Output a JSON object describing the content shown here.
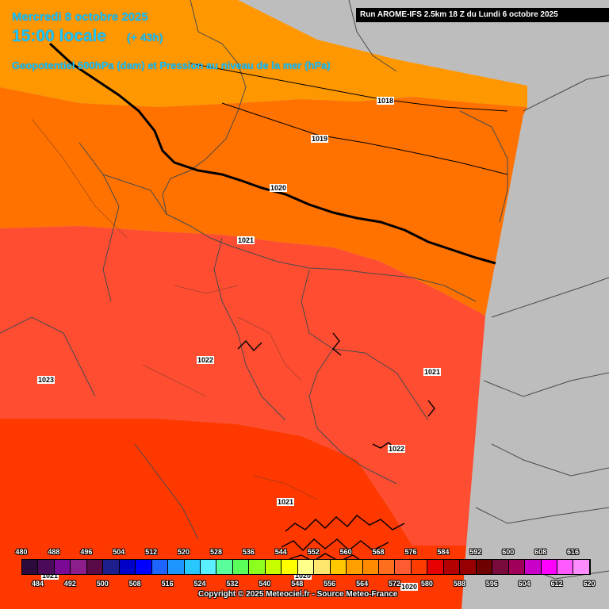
{
  "header": {
    "date": "Mercredi 8 octobre 2025",
    "time": "15:00 locale",
    "offset": "(+ 43h)",
    "field": "Geopotentiel 500hPa (dam) et Pression au niveau de la mer (hPa)",
    "run": "Run AROME-IFS 2.5km 18 Z du Lundi 6 octobre 2025"
  },
  "isobars": [
    {
      "value": "1018"
    },
    {
      "value": "1019"
    },
    {
      "value": "1020"
    },
    {
      "value": "1021"
    },
    {
      "value": "1022"
    },
    {
      "value": "1023"
    },
    {
      "value": "1021"
    },
    {
      "value": "1022"
    },
    {
      "value": "1021"
    },
    {
      "value": "1020"
    },
    {
      "value": "1020"
    },
    {
      "value": "1021"
    }
  ],
  "scale": {
    "top_labels": [
      "480",
      "488",
      "496",
      "504",
      "512",
      "520",
      "528",
      "536",
      "544",
      "552",
      "560",
      "568",
      "576",
      "584",
      "592",
      "600",
      "608",
      "616"
    ],
    "bottom_labels": [
      "484",
      "492",
      "500",
      "508",
      "516",
      "524",
      "532",
      "540",
      "548",
      "556",
      "564",
      "572",
      "580",
      "588",
      "596",
      "604",
      "612",
      "620"
    ],
    "colors": [
      "#2d0a3c",
      "#4b0a5a",
      "#7a0a96",
      "#8c1e8c",
      "#5a0a46",
      "#1e1e8c",
      "#0000c8",
      "#0000ff",
      "#1e64ff",
      "#1e96ff",
      "#28c8ff",
      "#5af0ff",
      "#5aff9b",
      "#5aff5a",
      "#8cff1e",
      "#c8ff00",
      "#ffff00",
      "#ffff8c",
      "#ffe66e",
      "#ffc800",
      "#ffa000",
      "#ff8c00",
      "#ff6e1e",
      "#ff5a32",
      "#ff3c00",
      "#e60000",
      "#b40000",
      "#960000",
      "#6e0000",
      "#780a3c",
      "#a0005a",
      "#c800c8",
      "#ff00ff",
      "#ff5aff",
      "#ff8cff"
    ]
  },
  "copyright": "Copyright © 2025 Meteociel.fr - Source Meteo-France",
  "colors": {
    "background": "#bdbdbd",
    "band_568": "#ff9800",
    "band_572": "#ff7200",
    "band_576": "#ff4d32",
    "band_580": "#ff3800",
    "title": "#1ec8ff"
  }
}
